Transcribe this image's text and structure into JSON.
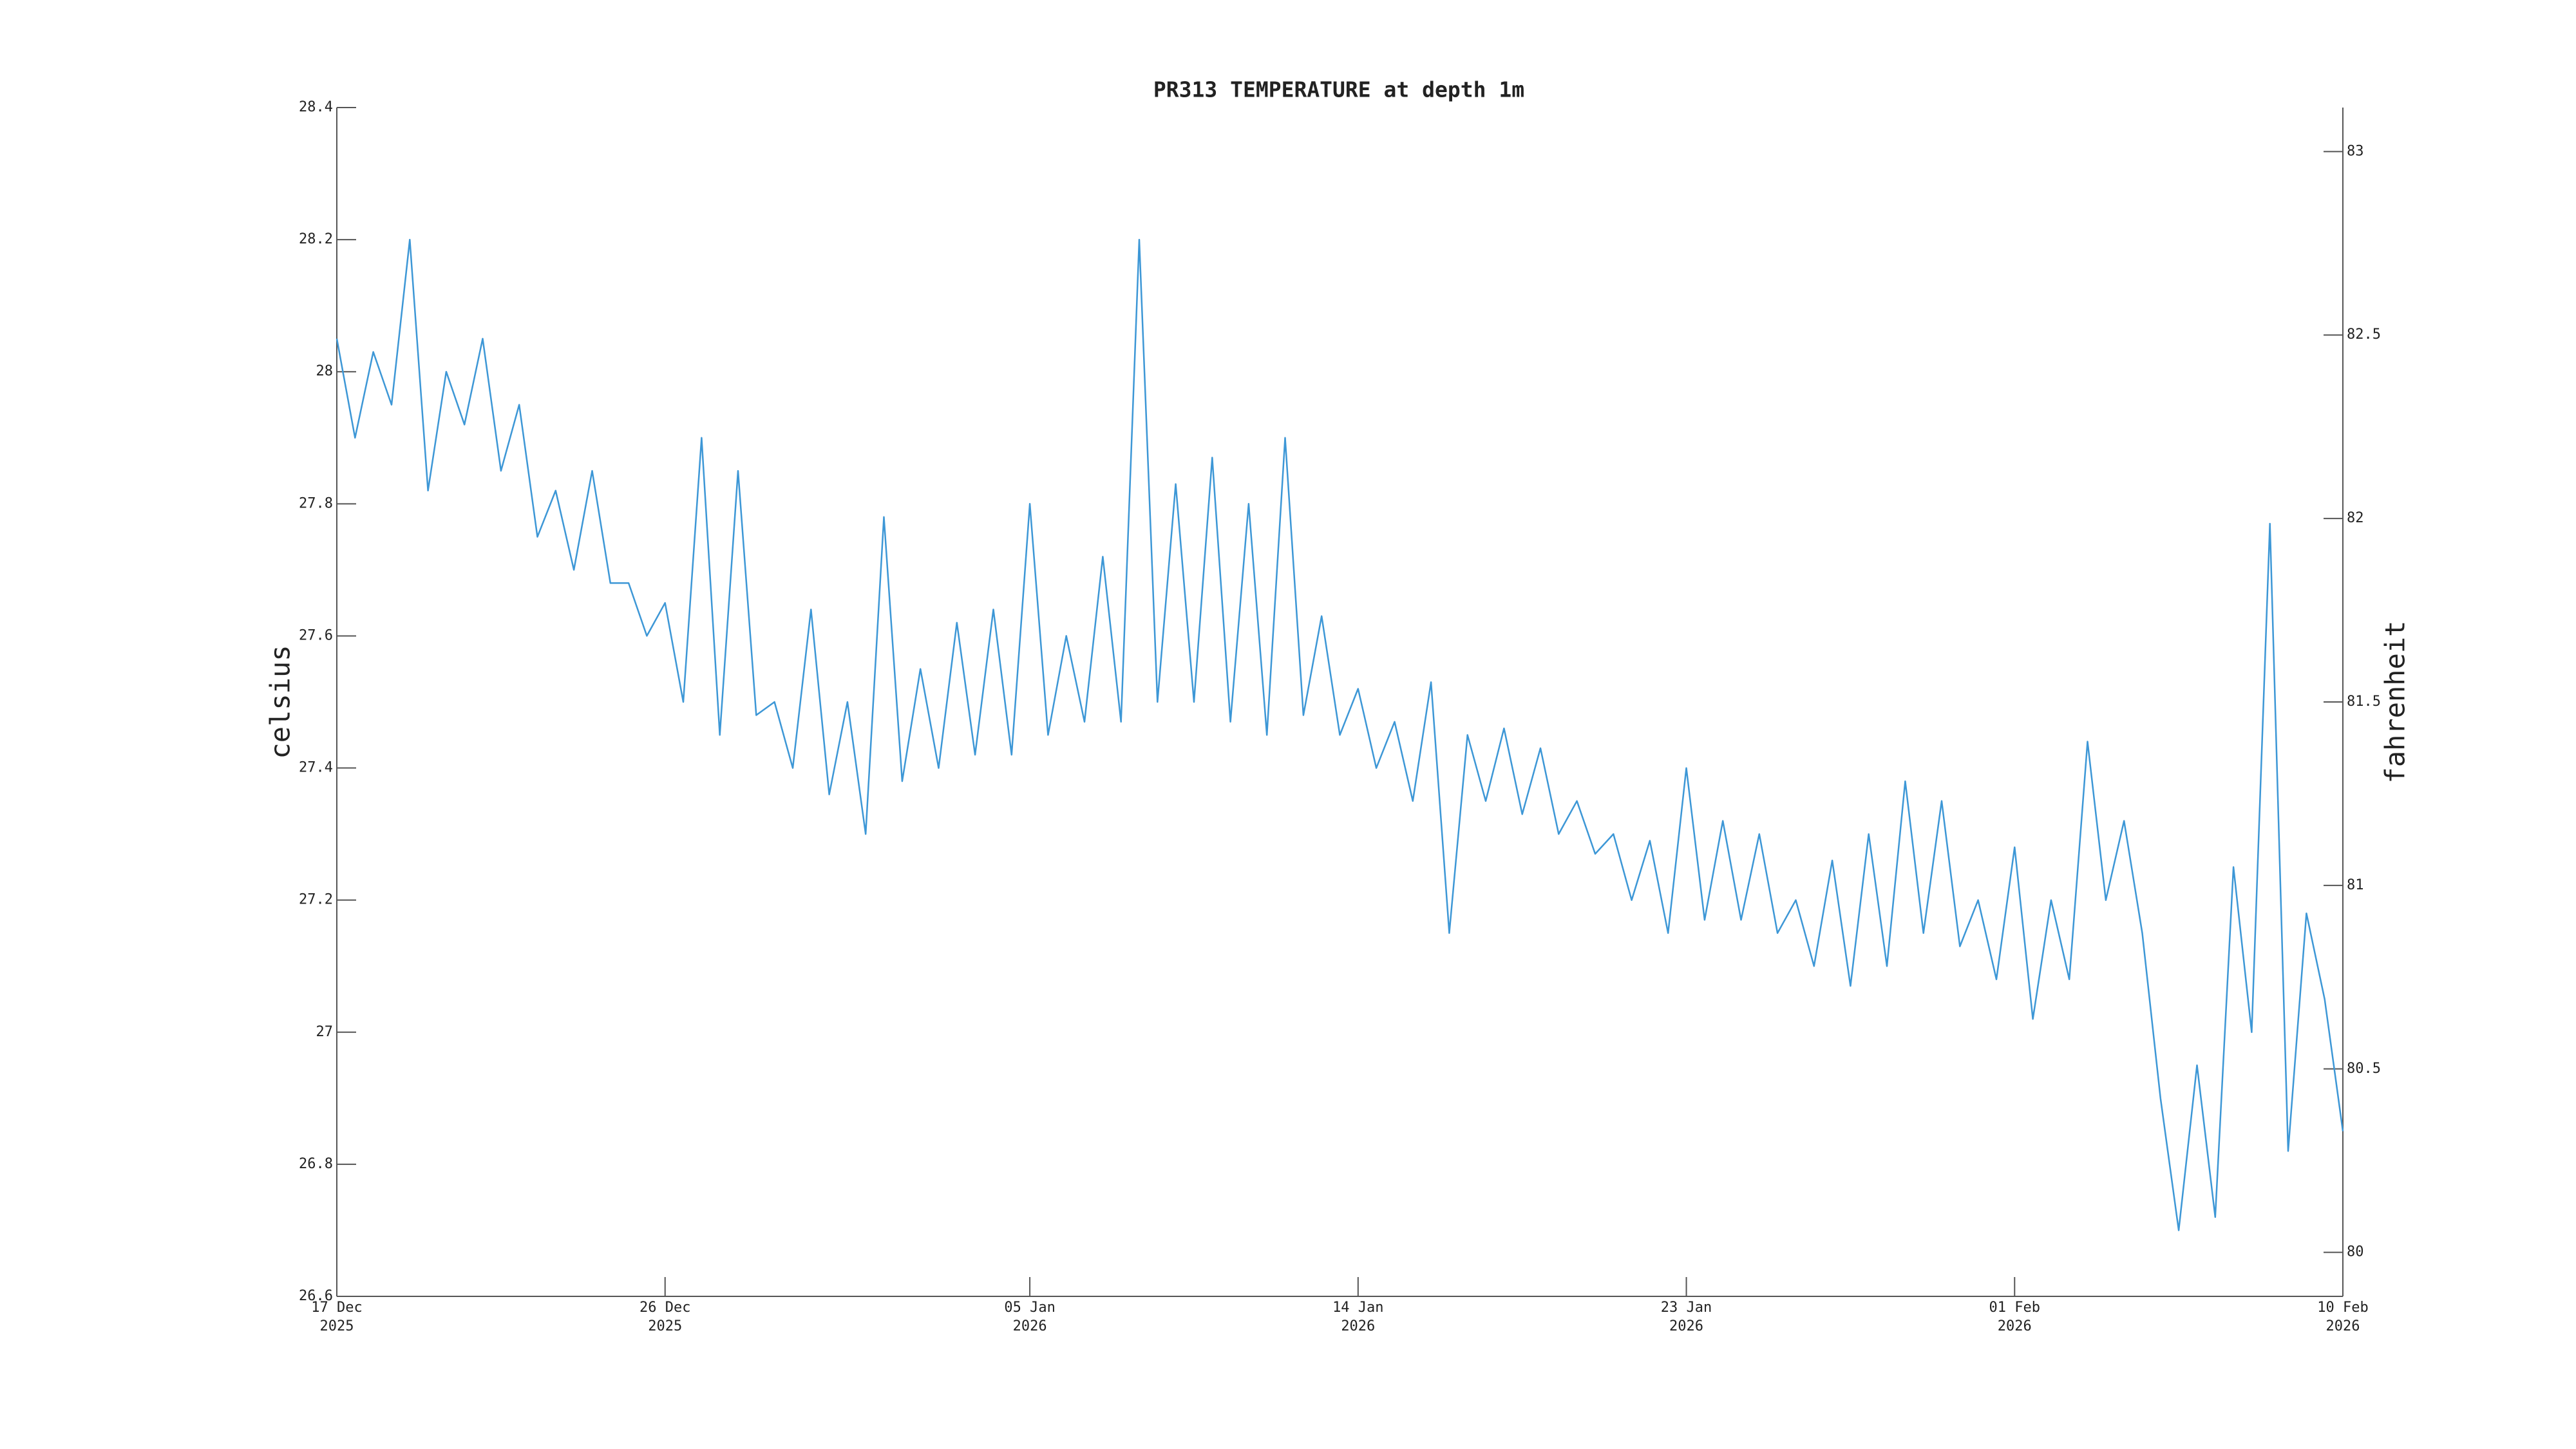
{
  "chart_data": {
    "type": "line",
    "title": "PR313 TEMPERATURE at depth 1m",
    "ylabel": "celsius",
    "y2label": "fahrenheit",
    "x": [
      "2025-12-17T00:00",
      "2025-12-17T12:00",
      "2025-12-18T00:00",
      "2025-12-18T12:00",
      "2025-12-19T00:00",
      "2025-12-19T12:00",
      "2025-12-20T00:00",
      "2025-12-20T12:00",
      "2025-12-21T00:00",
      "2025-12-21T12:00",
      "2025-12-22T00:00",
      "2025-12-22T12:00",
      "2025-12-23T00:00",
      "2025-12-23T12:00",
      "2025-12-24T00:00",
      "2025-12-24T12:00",
      "2025-12-25T00:00",
      "2025-12-25T12:00",
      "2025-12-26T00:00",
      "2025-12-26T12:00",
      "2025-12-27T00:00",
      "2025-12-27T12:00",
      "2025-12-28T00:00",
      "2025-12-28T12:00",
      "2025-12-29T00:00",
      "2025-12-29T12:00",
      "2025-12-30T00:00",
      "2025-12-30T12:00",
      "2025-12-31T00:00",
      "2025-12-31T12:00",
      "2026-01-01T00:00",
      "2026-01-01T12:00",
      "2026-01-02T00:00",
      "2026-01-02T12:00",
      "2026-01-03T00:00",
      "2026-01-03T12:00",
      "2026-01-04T00:00",
      "2026-01-04T12:00",
      "2026-01-05T00:00",
      "2026-01-05T12:00",
      "2026-01-06T00:00",
      "2026-01-06T12:00",
      "2026-01-07T00:00",
      "2026-01-07T12:00",
      "2026-01-08T00:00",
      "2026-01-08T12:00",
      "2026-01-09T00:00",
      "2026-01-09T12:00",
      "2026-01-10T00:00",
      "2026-01-10T12:00",
      "2026-01-11T00:00",
      "2026-01-11T12:00",
      "2026-01-12T00:00",
      "2026-01-12T12:00",
      "2026-01-13T00:00",
      "2026-01-13T12:00",
      "2026-01-14T00:00",
      "2026-01-14T12:00",
      "2026-01-15T00:00",
      "2026-01-15T12:00",
      "2026-01-16T00:00",
      "2026-01-16T12:00",
      "2026-01-17T00:00",
      "2026-01-17T12:00",
      "2026-01-18T00:00",
      "2026-01-18T12:00",
      "2026-01-19T00:00",
      "2026-01-19T12:00",
      "2026-01-20T00:00",
      "2026-01-20T12:00",
      "2026-01-21T00:00",
      "2026-01-21T12:00",
      "2026-01-22T00:00",
      "2026-01-22T12:00",
      "2026-01-23T00:00",
      "2026-01-23T12:00",
      "2026-01-24T00:00",
      "2026-01-24T12:00",
      "2026-01-25T00:00",
      "2026-01-25T12:00",
      "2026-01-26T00:00",
      "2026-01-26T12:00",
      "2026-01-27T00:00",
      "2026-01-27T12:00",
      "2026-01-28T00:00",
      "2026-01-28T12:00",
      "2026-01-29T00:00",
      "2026-01-29T12:00",
      "2026-01-30T00:00",
      "2026-01-30T12:00",
      "2026-01-31T00:00",
      "2026-01-31T12:00",
      "2026-02-01T00:00",
      "2026-02-01T12:00",
      "2026-02-02T00:00",
      "2026-02-02T12:00",
      "2026-02-03T00:00",
      "2026-02-03T12:00",
      "2026-02-04T00:00",
      "2026-02-04T12:00",
      "2026-02-05T00:00",
      "2026-02-05T12:00",
      "2026-02-06T00:00",
      "2026-02-06T12:00",
      "2026-02-07T00:00",
      "2026-02-07T12:00",
      "2026-02-08T00:00",
      "2026-02-08T12:00",
      "2026-02-09T00:00",
      "2026-02-09T12:00",
      "2026-02-10T00:00"
    ],
    "series": [
      {
        "color": "#3d97d6",
        "values": [
          28.05,
          27.9,
          28.03,
          27.95,
          28.2,
          27.82,
          28.0,
          27.92,
          28.05,
          27.85,
          27.95,
          27.75,
          27.82,
          27.7,
          27.85,
          27.68,
          27.68,
          27.6,
          27.65,
          27.5,
          27.9,
          27.45,
          27.85,
          27.48,
          27.5,
          27.4,
          27.64,
          27.36,
          27.5,
          27.3,
          27.78,
          27.38,
          27.55,
          27.4,
          27.62,
          27.42,
          27.64,
          27.42,
          27.8,
          27.45,
          27.6,
          27.47,
          27.72,
          27.47,
          28.2,
          27.5,
          27.83,
          27.5,
          27.87,
          27.47,
          27.8,
          27.45,
          27.9,
          27.48,
          27.63,
          27.45,
          27.52,
          27.4,
          27.47,
          27.35,
          27.53,
          27.15,
          27.45,
          27.35,
          27.46,
          27.33,
          27.43,
          27.3,
          27.35,
          27.27,
          27.3,
          27.2,
          27.29,
          27.15,
          27.4,
          27.17,
          27.32,
          27.17,
          27.3,
          27.15,
          27.2,
          27.1,
          27.26,
          27.07,
          27.3,
          27.1,
          27.38,
          27.15,
          27.35,
          27.13,
          27.2,
          27.08,
          27.28,
          27.02,
          27.2,
          27.08,
          27.44,
          27.2,
          27.32,
          27.15,
          26.9,
          26.7,
          26.95,
          26.72,
          27.25,
          27.0,
          27.77,
          26.82,
          27.18,
          27.05,
          26.85
        ]
      }
    ],
    "xlim": [
      "2025-12-17T00:00",
      "2026-02-10T00:00"
    ],
    "xticks": [
      {
        "value": "2025-12-17T00:00",
        "label": [
          "17 Dec",
          "2025"
        ]
      },
      {
        "value": "2025-12-26T00:00",
        "label": [
          "26 Dec",
          "2025"
        ]
      },
      {
        "value": "2026-01-05T00:00",
        "label": [
          "05 Jan",
          "2026"
        ]
      },
      {
        "value": "2026-01-14T00:00",
        "label": [
          "14 Jan",
          "2026"
        ]
      },
      {
        "value": "2026-01-23T00:00",
        "label": [
          "23 Jan",
          "2026"
        ]
      },
      {
        "value": "2026-02-01T00:00",
        "label": [
          "01 Feb",
          "2026"
        ]
      },
      {
        "value": "2026-02-10T00:00",
        "label": [
          "10 Feb",
          "2026"
        ]
      }
    ],
    "ylim": [
      26.6,
      28.4
    ],
    "yticks": [
      26.6,
      26.8,
      27,
      27.2,
      27.4,
      27.6,
      27.8,
      28,
      28.2,
      28.4
    ],
    "y2lim": [
      79.88,
      83.12
    ],
    "y2ticks": [
      80,
      80.5,
      81,
      81.5,
      82,
      82.5,
      83
    ],
    "grid": false
  }
}
